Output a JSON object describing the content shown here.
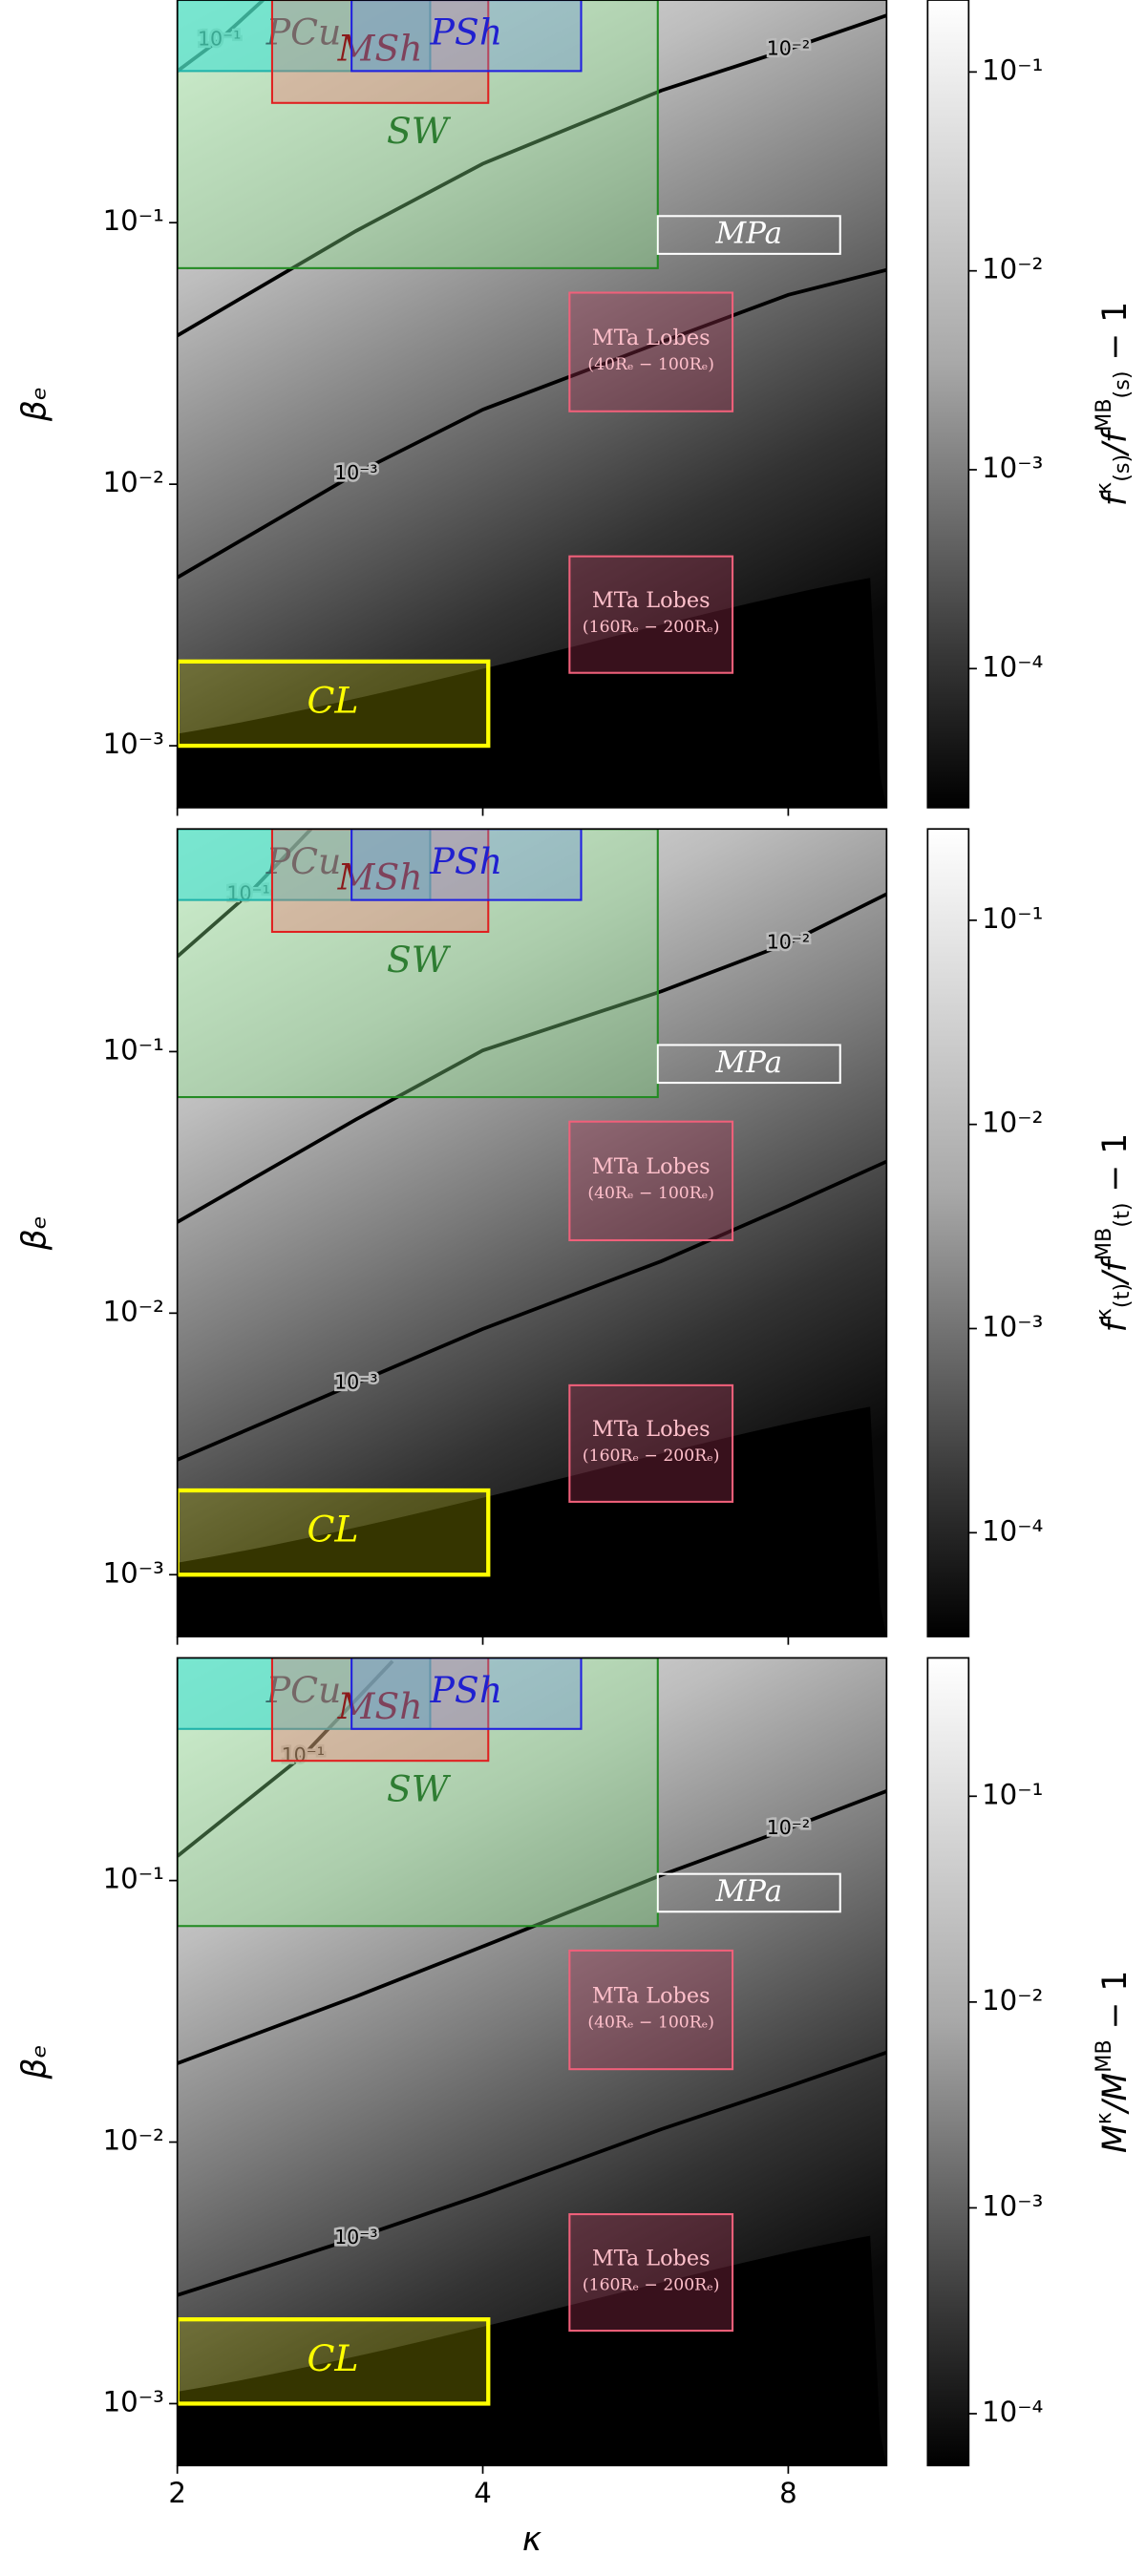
{
  "chart_data": [
    {
      "type": "contour",
      "ylabel": "βₑ",
      "log_x": true,
      "log_y": true,
      "xlim": [
        2,
        10
      ],
      "ylim": [
        0.00058,
        0.71
      ],
      "xticks": [
        2,
        4,
        8
      ],
      "yticks": [
        {
          "value": 0.001,
          "label": "10⁻³"
        },
        {
          "value": 0.01,
          "label": "10⁻²"
        },
        {
          "value": 0.1,
          "label": "10⁻¹"
        }
      ],
      "contours": [
        {
          "level": 0.1,
          "label": "10⁻¹",
          "color": "#000000",
          "x": [
            2,
            2.2,
            2.43
          ],
          "y": [
            0.38,
            0.5,
            0.71
          ]
        },
        {
          "level": 0.01,
          "label": "10⁻²",
          "color": "#000000",
          "x": [
            2,
            3,
            4,
            6,
            8,
            10
          ],
          "y": [
            0.037,
            0.093,
            0.168,
            0.32,
            0.46,
            0.62
          ]
        },
        {
          "level": 0.001,
          "label": "10⁻³",
          "color": "#000000",
          "x": [
            2,
            3,
            4,
            6,
            8,
            10
          ],
          "y": [
            0.0044,
            0.011,
            0.0193,
            0.035,
            0.053,
            0.066
          ]
        }
      ],
      "regions": [
        {
          "label": "SW",
          "x": [
            2,
            5.95
          ],
          "y": [
            0.067,
            0.71
          ],
          "fill": "#90ee90",
          "opacity": 0.35,
          "edge": "#228b22",
          "text_color": "#2e7d32",
          "italic": true
        },
        {
          "label": "PCu",
          "x": [
            2,
            3.55
          ],
          "y": [
            0.38,
            0.71
          ],
          "fill": "#40e0d0",
          "opacity": 0.6,
          "edge": "#20b2aa",
          "text_color": "#3a6a6a",
          "italic": true
        },
        {
          "label": "MSh",
          "x": [
            2.48,
            4.05
          ],
          "y": [
            0.287,
            0.71
          ],
          "fill": "#ff6060",
          "opacity": 0.3,
          "edge": "#e02020",
          "text_color": "#8b1a1a",
          "italic": true
        },
        {
          "label": "PSh",
          "x": [
            2.97,
            5.0
          ],
          "y": [
            0.38,
            0.71
          ],
          "fill": "#6a8fd8",
          "opacity": 0.35,
          "edge": "#2020e0",
          "text_color": "#2020d0",
          "italic": true
        },
        {
          "label": "MPa",
          "x": [
            5.95,
            9.0
          ],
          "y": [
            0.076,
            0.106
          ],
          "fill": "#ffffff",
          "opacity": 0,
          "edge": "#ffffff",
          "text_color": "#ffffff",
          "italic": true
        },
        {
          "label": "MTa Lobes",
          "sublabel": "(40Rₑ − 100Rₑ)",
          "x": [
            4.87,
            7.05
          ],
          "y": [
            0.019,
            0.054
          ],
          "fill": "#a03050",
          "opacity": 0.35,
          "edge": "#f0607a",
          "text_color": "#ffc0cb",
          "italic": false
        },
        {
          "label": "MTa Lobes",
          "sublabel": "(160Rₑ − 200Rₑ)",
          "x": [
            4.87,
            7.05
          ],
          "y": [
            0.0019,
            0.0053
          ],
          "fill": "#a03050",
          "opacity": 0.35,
          "edge": "#f0607a",
          "text_color": "#ffc0cb",
          "italic": false
        },
        {
          "label": "CL",
          "x": [
            2,
            4.05
          ],
          "y": [
            0.001,
            0.0021
          ],
          "fill": "#b0b000",
          "opacity": 0.3,
          "edge": "#ffff00",
          "text_color": "#ffff00",
          "italic": true
        }
      ],
      "colorbar": {
        "lim": [
          2e-05,
          0.23
        ],
        "log": true,
        "ticks": [
          {
            "value": 0.1,
            "label": "10⁻¹"
          },
          {
            "value": 0.01,
            "label": "10⁻²"
          },
          {
            "value": 0.001,
            "label": "10⁻³"
          },
          {
            "value": 0.0001,
            "label": "10⁻⁴"
          }
        ],
        "label_parts": [
          {
            "text": "f",
            "pos": "base"
          },
          {
            "text": "κ",
            "pos": "sup"
          },
          {
            "text": "(s)",
            "pos": "sub"
          },
          {
            "text": "/f",
            "pos": "base"
          },
          {
            "text": "MB",
            "pos": "sup"
          },
          {
            "text": "(s)",
            "pos": "sub"
          },
          {
            "text": " − 1",
            "pos": "base"
          }
        ]
      }
    },
    {
      "type": "contour",
      "ylabel": "βₑ",
      "log_x": true,
      "log_y": true,
      "xlim": [
        2,
        10
      ],
      "ylim": [
        0.00058,
        0.71
      ],
      "xticks": [
        2,
        4,
        8
      ],
      "yticks": [
        {
          "value": 0.001,
          "label": "10⁻³"
        },
        {
          "value": 0.01,
          "label": "10⁻²"
        },
        {
          "value": 0.1,
          "label": "10⁻¹"
        }
      ],
      "contours": [
        {
          "level": 0.1,
          "label": "10⁻¹",
          "color": "#000000",
          "x": [
            2,
            2.35,
            2.71
          ],
          "y": [
            0.231,
            0.4,
            0.71
          ]
        },
        {
          "level": 0.01,
          "label": "10⁻²",
          "color": "#000000",
          "x": [
            2,
            3,
            4,
            6,
            8,
            10
          ],
          "y": [
            0.0223,
            0.055,
            0.101,
            0.17,
            0.26,
            0.4
          ]
        },
        {
          "level": 0.001,
          "label": "10⁻³",
          "color": "#000000",
          "x": [
            2,
            3,
            4,
            6,
            8,
            10
          ],
          "y": [
            0.00275,
            0.0054,
            0.0087,
            0.0158,
            0.0257,
            0.038
          ]
        }
      ],
      "regions": [
        {
          "label": "SW",
          "x": [
            2,
            5.95
          ],
          "y": [
            0.067,
            0.71
          ],
          "fill": "#90ee90",
          "opacity": 0.35,
          "edge": "#228b22",
          "text_color": "#2e7d32",
          "italic": true
        },
        {
          "label": "PCu",
          "x": [
            2,
            3.55
          ],
          "y": [
            0.38,
            0.71
          ],
          "fill": "#40e0d0",
          "opacity": 0.6,
          "edge": "#20b2aa",
          "text_color": "#3a6a6a",
          "italic": true
        },
        {
          "label": "MSh",
          "x": [
            2.48,
            4.05
          ],
          "y": [
            0.287,
            0.71
          ],
          "fill": "#ff6060",
          "opacity": 0.3,
          "edge": "#e02020",
          "text_color": "#8b1a1a",
          "italic": true
        },
        {
          "label": "PSh",
          "x": [
            2.97,
            5.0
          ],
          "y": [
            0.38,
            0.71
          ],
          "fill": "#6a8fd8",
          "opacity": 0.35,
          "edge": "#2020e0",
          "text_color": "#2020d0",
          "italic": true
        },
        {
          "label": "MPa",
          "x": [
            5.95,
            9.0
          ],
          "y": [
            0.076,
            0.106
          ],
          "fill": "#ffffff",
          "opacity": 0,
          "edge": "#ffffff",
          "text_color": "#ffffff",
          "italic": true
        },
        {
          "label": "MTa Lobes",
          "sublabel": "(40Rₑ − 100Rₑ)",
          "x": [
            4.87,
            7.05
          ],
          "y": [
            0.019,
            0.054
          ],
          "fill": "#a03050",
          "opacity": 0.35,
          "edge": "#f0607a",
          "text_color": "#ffc0cb",
          "italic": false
        },
        {
          "label": "MTa Lobes",
          "sublabel": "(160Rₑ − 200Rₑ)",
          "x": [
            4.87,
            7.05
          ],
          "y": [
            0.0019,
            0.0053
          ],
          "fill": "#a03050",
          "opacity": 0.35,
          "edge": "#f0607a",
          "text_color": "#ffc0cb",
          "italic": false
        },
        {
          "label": "CL",
          "x": [
            2,
            4.05
          ],
          "y": [
            0.001,
            0.0021
          ],
          "fill": "#b0b000",
          "opacity": 0.3,
          "edge": "#ffff00",
          "text_color": "#ffff00",
          "italic": true
        }
      ],
      "colorbar": {
        "lim": [
          3.1e-05,
          0.28
        ],
        "log": true,
        "ticks": [
          {
            "value": 0.1,
            "label": "10⁻¹"
          },
          {
            "value": 0.01,
            "label": "10⁻²"
          },
          {
            "value": 0.001,
            "label": "10⁻³"
          },
          {
            "value": 0.0001,
            "label": "10⁻⁴"
          }
        ],
        "label_parts": [
          {
            "text": "f",
            "pos": "base"
          },
          {
            "text": "κ",
            "pos": "sup"
          },
          {
            "text": "(t)",
            "pos": "sub"
          },
          {
            "text": "/f",
            "pos": "base"
          },
          {
            "text": "MB",
            "pos": "sup"
          },
          {
            "text": "(t)",
            "pos": "sub"
          },
          {
            "text": " − 1",
            "pos": "base"
          }
        ]
      }
    },
    {
      "type": "contour",
      "ylabel": "βₑ",
      "xlabel": "κ",
      "log_x": true,
      "log_y": true,
      "xlim": [
        2,
        10
      ],
      "ylim": [
        0.00058,
        0.71
      ],
      "xticks": [
        2,
        4,
        8
      ],
      "yticks": [
        {
          "value": 0.001,
          "label": "10⁻³"
        },
        {
          "value": 0.01,
          "label": "10⁻²"
        },
        {
          "value": 0.1,
          "label": "10⁻¹"
        }
      ],
      "contours": [
        {
          "level": 0.1,
          "label": "10⁻¹",
          "color": "#000000",
          "x": [
            2,
            2.66,
            3.26
          ],
          "y": [
            0.124,
            0.3,
            0.69
          ]
        },
        {
          "level": 0.01,
          "label": "10⁻²",
          "color": "#000000",
          "x": [
            2,
            3,
            4,
            6,
            8,
            10
          ],
          "y": [
            0.02,
            0.036,
            0.056,
            0.105,
            0.158,
            0.22
          ]
        },
        {
          "level": 0.001,
          "label": "10⁻³",
          "color": "#000000",
          "x": [
            2,
            3,
            4,
            6,
            8,
            10
          ],
          "y": [
            0.0026,
            0.0043,
            0.0063,
            0.0112,
            0.0163,
            0.022
          ]
        }
      ],
      "regions": [
        {
          "label": "SW",
          "x": [
            2,
            5.95
          ],
          "y": [
            0.067,
            0.71
          ],
          "fill": "#90ee90",
          "opacity": 0.35,
          "edge": "#228b22",
          "text_color": "#2e7d32",
          "italic": true
        },
        {
          "label": "PCu",
          "x": [
            2,
            3.55
          ],
          "y": [
            0.38,
            0.71
          ],
          "fill": "#40e0d0",
          "opacity": 0.6,
          "edge": "#20b2aa",
          "text_color": "#3a6a6a",
          "italic": true
        },
        {
          "label": "MSh",
          "x": [
            2.48,
            4.05
          ],
          "y": [
            0.287,
            0.71
          ],
          "fill": "#ff6060",
          "opacity": 0.3,
          "edge": "#e02020",
          "text_color": "#8b1a1a",
          "italic": true
        },
        {
          "label": "PSh",
          "x": [
            2.97,
            5.0
          ],
          "y": [
            0.38,
            0.71
          ],
          "fill": "#6a8fd8",
          "opacity": 0.35,
          "edge": "#2020e0",
          "text_color": "#2020d0",
          "italic": true
        },
        {
          "label": "MPa",
          "x": [
            5.95,
            9.0
          ],
          "y": [
            0.076,
            0.106
          ],
          "fill": "#ffffff",
          "opacity": 0,
          "edge": "#ffffff",
          "text_color": "#ffffff",
          "italic": true
        },
        {
          "label": "MTa Lobes",
          "sublabel": "(40Rₑ − 100Rₑ)",
          "x": [
            4.87,
            7.05
          ],
          "y": [
            0.019,
            0.054
          ],
          "fill": "#a03050",
          "opacity": 0.35,
          "edge": "#f0607a",
          "text_color": "#ffc0cb",
          "italic": false
        },
        {
          "label": "MTa Lobes",
          "sublabel": "(160Rₑ − 200Rₑ)",
          "x": [
            4.87,
            7.05
          ],
          "y": [
            0.0019,
            0.0053
          ],
          "fill": "#a03050",
          "opacity": 0.35,
          "edge": "#f0607a",
          "text_color": "#ffc0cb",
          "italic": false
        },
        {
          "label": "CL",
          "x": [
            2,
            4.05
          ],
          "y": [
            0.001,
            0.0021
          ],
          "fill": "#b0b000",
          "opacity": 0.3,
          "edge": "#ffff00",
          "text_color": "#ffff00",
          "italic": true
        }
      ],
      "colorbar": {
        "lim": [
          5.6e-05,
          0.47
        ],
        "log": true,
        "ticks": [
          {
            "value": 0.1,
            "label": "10⁻¹"
          },
          {
            "value": 0.01,
            "label": "10⁻²"
          },
          {
            "value": 0.001,
            "label": "10⁻³"
          },
          {
            "value": 0.0001,
            "label": "10⁻⁴"
          }
        ],
        "label_parts": [
          {
            "text": "M",
            "pos": "base"
          },
          {
            "text": "κ",
            "pos": "sup"
          },
          {
            "text": "/M",
            "pos": "base"
          },
          {
            "text": "MB",
            "pos": "sup"
          },
          {
            "text": " − 1",
            "pos": "base"
          }
        ]
      }
    }
  ]
}
